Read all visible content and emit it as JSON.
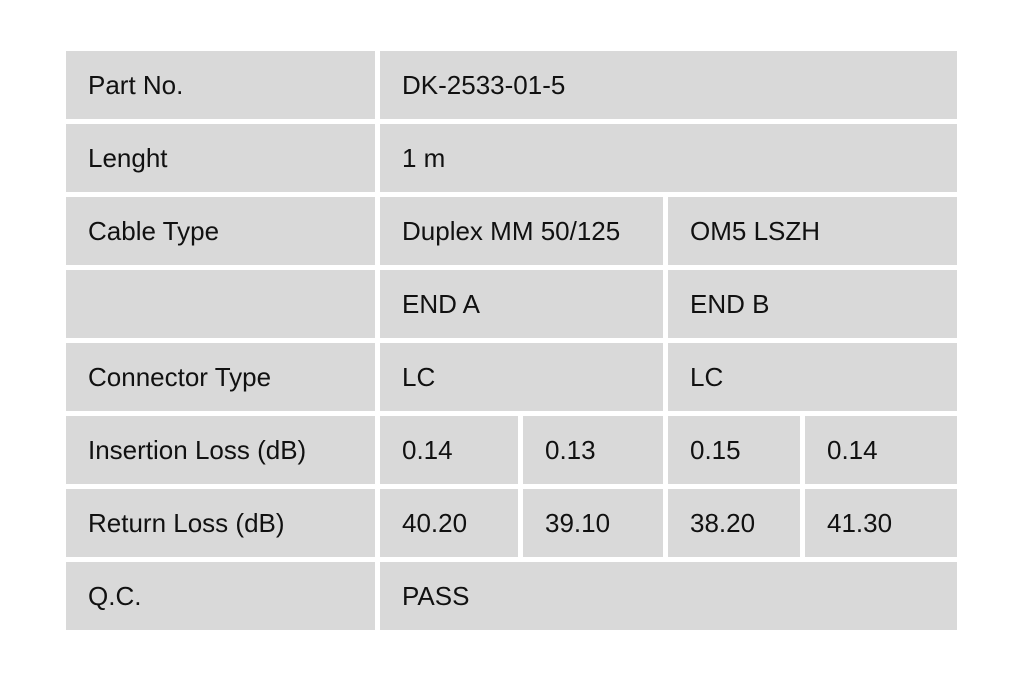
{
  "table": {
    "rows": [
      {
        "label": "Part No.",
        "values": [
          "DK-2533-01-5"
        ]
      },
      {
        "label": "Lenght",
        "values": [
          "1 m"
        ]
      },
      {
        "label": "Cable Type",
        "values": [
          "Duplex MM 50/125",
          "OM5 LSZH"
        ]
      },
      {
        "label": "",
        "values": [
          "END A",
          "END B"
        ]
      },
      {
        "label": "Connector Type",
        "values": [
          "LC",
          "LC"
        ]
      },
      {
        "label": "Insertion Loss (dB)",
        "values": [
          "0.14",
          "0.13",
          "0.15",
          "0.14"
        ]
      },
      {
        "label": "Return Loss (dB)",
        "values": [
          "40.20",
          "39.10",
          "38.20",
          "41.30"
        ]
      },
      {
        "label": "Q.C.",
        "values": [
          "PASS"
        ]
      }
    ],
    "colors": {
      "cell_background": "#d9d9d9",
      "gutter": "#ffffff",
      "text": "#111111"
    }
  }
}
